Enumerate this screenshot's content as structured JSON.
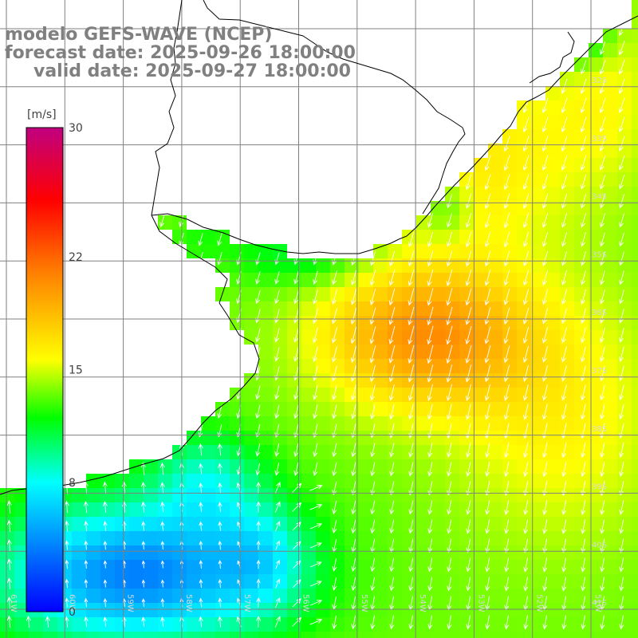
{
  "title": {
    "line1": "modelo GEFS-WAVE (NCEP)",
    "line2": "forecast date: 2025-09-26 18:00:00",
    "line3": "valid date: 2025-09-27 18:00:00"
  },
  "colorbar": {
    "unit": "[m/s]",
    "min": 0,
    "max": 30,
    "ticks": [
      "30",
      "22",
      "15",
      "8",
      "0"
    ],
    "tick_values": [
      30,
      22,
      15,
      8,
      0
    ],
    "stops": [
      "#0000ff",
      "#00ffff",
      "#00ff00",
      "#ffff00",
      "#ff8000",
      "#ff0000",
      "#c00080"
    ]
  },
  "map": {
    "lat_labels": [
      "32S",
      "33S",
      "34S",
      "35S",
      "36S",
      "37S",
      "38S",
      "39S",
      "40S",
      "41S"
    ],
    "lon_labels": [
      "61W",
      "60W",
      "59W",
      "58W",
      "57W",
      "56W",
      "55W",
      "54W",
      "53W",
      "52W",
      "51W"
    ],
    "land_color": "#ffffff",
    "grid_color": "#808080",
    "coast_color": "#000000",
    "arrow_color": "#ffffff"
  }
}
